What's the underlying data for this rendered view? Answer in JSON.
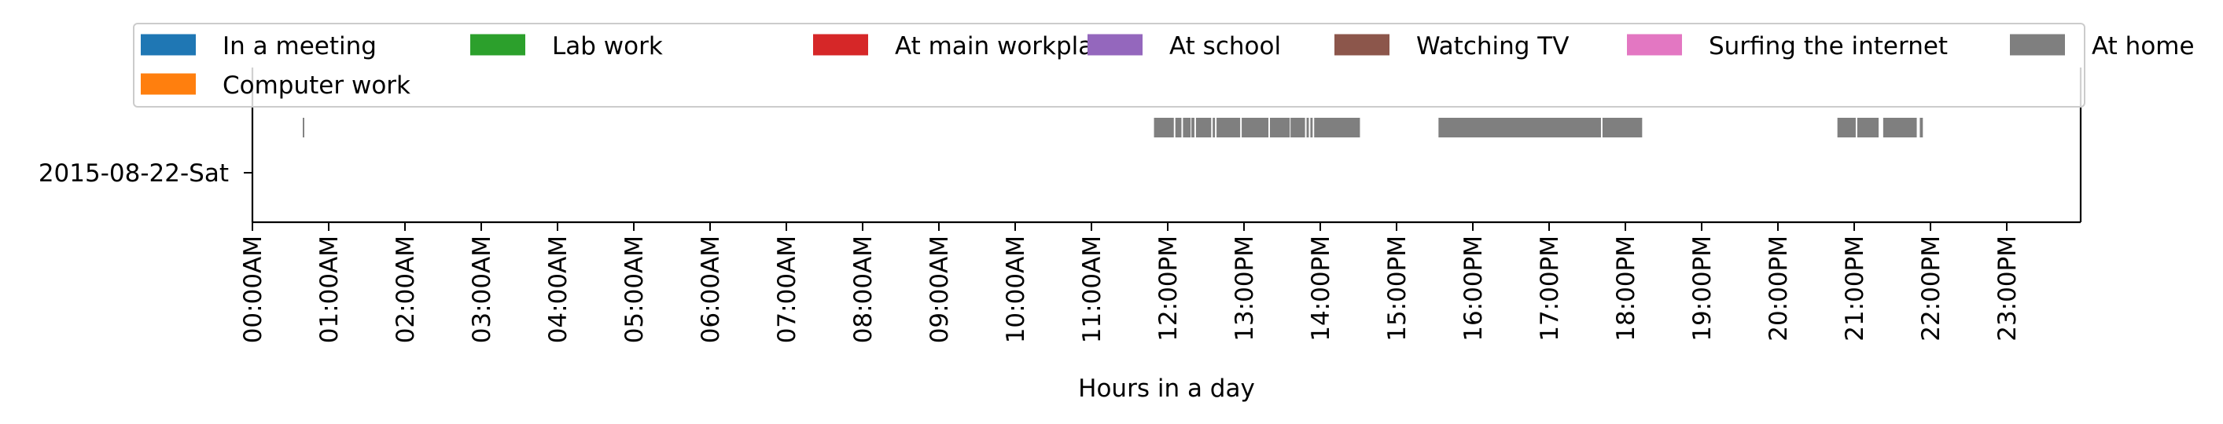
{
  "chart_data": {
    "type": "timeline",
    "xlabel": "Hours in a day",
    "ylabel": "",
    "title": "",
    "x_range_hours": [
      0,
      24
    ],
    "y_categories": [
      "2015-08-22-Sat"
    ],
    "x_tick_labels": [
      "00:00AM",
      "01:00AM",
      "02:00AM",
      "03:00AM",
      "04:00AM",
      "05:00AM",
      "06:00AM",
      "07:00AM",
      "08:00AM",
      "09:00AM",
      "10:00AM",
      "11:00AM",
      "12:00PM",
      "13:00PM",
      "14:00PM",
      "15:00PM",
      "16:00PM",
      "17:00PM",
      "18:00PM",
      "19:00PM",
      "20:00PM",
      "21:00PM",
      "22:00PM",
      "23:00PM"
    ],
    "legend": {
      "placement": "top",
      "columns": 7,
      "entries": [
        {
          "label": "In a meeting",
          "color": "#1f77b4"
        },
        {
          "label": "Lab work",
          "color": "#2ca02c"
        },
        {
          "label": "At main workplace",
          "color": "#d62728"
        },
        {
          "label": "At school",
          "color": "#9467bd"
        },
        {
          "label": "Watching TV",
          "color": "#8c564b"
        },
        {
          "label": "Surfing the internet",
          "color": "#e377c2"
        },
        {
          "label": "At home",
          "color": "#7f7f7f"
        },
        {
          "label": "Computer work",
          "color": "#ff7f0e"
        }
      ]
    },
    "series": [
      {
        "name": "At home",
        "color": "#7f7f7f",
        "intervals_hours": [
          [
            0.66,
            0.68
          ],
          [
            11.82,
            12.08
          ],
          [
            12.1,
            12.18
          ],
          [
            12.2,
            12.3
          ],
          [
            12.31,
            12.35
          ],
          [
            12.37,
            12.57
          ],
          [
            12.59,
            12.62
          ],
          [
            12.64,
            12.95
          ],
          [
            12.97,
            13.32
          ],
          [
            13.34,
            13.6
          ],
          [
            13.61,
            13.8
          ],
          [
            13.82,
            13.85
          ],
          [
            13.87,
            13.9
          ],
          [
            13.92,
            14.52
          ],
          [
            15.55,
            17.68
          ],
          [
            17.7,
            18.22
          ],
          [
            20.78,
            21.02
          ],
          [
            21.04,
            21.32
          ],
          [
            21.38,
            21.82
          ],
          [
            21.86,
            21.9
          ]
        ]
      }
    ]
  }
}
